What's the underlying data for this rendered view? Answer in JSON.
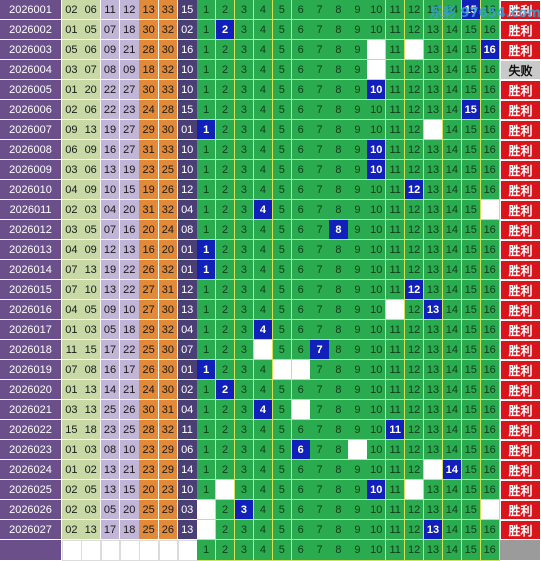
{
  "watermark": "乐彩 97654.com",
  "rows": [
    {
      "period": "2026001",
      "nums": [
        "02",
        "06",
        "11",
        "12",
        "13",
        "33",
        "15"
      ],
      "hit": "15",
      "result": "胜利"
    },
    {
      "period": "2026002",
      "nums": [
        "01",
        "05",
        "07",
        "18",
        "30",
        "32",
        "02"
      ],
      "hit": "2",
      "result": "胜利"
    },
    {
      "period": "2026003",
      "nums": [
        "05",
        "06",
        "09",
        "21",
        "28",
        "30",
        "16"
      ],
      "hit": "16",
      "blank": [
        "10",
        "12"
      ],
      "result": "胜利"
    },
    {
      "period": "2026004",
      "nums": [
        "03",
        "07",
        "08",
        "09",
        "18",
        "32",
        "10"
      ],
      "hit": "",
      "blank": [
        "10"
      ],
      "result": "失败"
    },
    {
      "period": "2026005",
      "nums": [
        "01",
        "20",
        "22",
        "27",
        "30",
        "33",
        "10"
      ],
      "hit": "10",
      "result": "胜利"
    },
    {
      "period": "2026006",
      "nums": [
        "02",
        "06",
        "22",
        "23",
        "24",
        "28",
        "15"
      ],
      "hit": "15",
      "result": "胜利"
    },
    {
      "period": "2026007",
      "nums": [
        "09",
        "13",
        "19",
        "27",
        "29",
        "30",
        "01"
      ],
      "hit": "1",
      "blank": [
        "13"
      ],
      "result": "胜利"
    },
    {
      "period": "2026008",
      "nums": [
        "06",
        "09",
        "16",
        "27",
        "31",
        "33",
        "10"
      ],
      "hit": "10",
      "result": "胜利"
    },
    {
      "period": "2026009",
      "nums": [
        "03",
        "06",
        "13",
        "19",
        "23",
        "25",
        "10"
      ],
      "hit": "10",
      "result": "胜利"
    },
    {
      "period": "2026010",
      "nums": [
        "04",
        "09",
        "10",
        "15",
        "19",
        "26",
        "12"
      ],
      "hit": "12",
      "result": "胜利"
    },
    {
      "period": "2026011",
      "nums": [
        "02",
        "03",
        "04",
        "20",
        "31",
        "32",
        "04"
      ],
      "hit": "4",
      "blank": [
        "16"
      ],
      "result": "胜利"
    },
    {
      "period": "2026012",
      "nums": [
        "03",
        "05",
        "07",
        "16",
        "20",
        "24",
        "08"
      ],
      "hit": "8",
      "result": "胜利"
    },
    {
      "period": "2026013",
      "nums": [
        "04",
        "09",
        "12",
        "13",
        "16",
        "20",
        "01"
      ],
      "hit": "1",
      "result": "胜利"
    },
    {
      "period": "2026014",
      "nums": [
        "07",
        "13",
        "19",
        "22",
        "26",
        "32",
        "01"
      ],
      "hit": "1",
      "result": "胜利"
    },
    {
      "period": "2026015",
      "nums": [
        "07",
        "10",
        "13",
        "22",
        "27",
        "31",
        "12"
      ],
      "hit": "12",
      "result": "胜利"
    },
    {
      "period": "2026016",
      "nums": [
        "04",
        "05",
        "09",
        "10",
        "27",
        "30",
        "13"
      ],
      "hit": "13",
      "blank": [
        "11"
      ],
      "result": "胜利"
    },
    {
      "period": "2026017",
      "nums": [
        "01",
        "03",
        "05",
        "18",
        "29",
        "32",
        "04"
      ],
      "hit": "4",
      "result": "胜利"
    },
    {
      "period": "2026018",
      "nums": [
        "11",
        "15",
        "17",
        "22",
        "25",
        "30",
        "07"
      ],
      "hit": "7",
      "blank": [
        "4"
      ],
      "result": "胜利"
    },
    {
      "period": "2026019",
      "nums": [
        "07",
        "08",
        "16",
        "17",
        "26",
        "30",
        "01"
      ],
      "hit": "1",
      "blank": [
        "5",
        "6"
      ],
      "result": "胜利"
    },
    {
      "period": "2026020",
      "nums": [
        "01",
        "13",
        "14",
        "21",
        "24",
        "30",
        "02"
      ],
      "hit": "2",
      "result": "胜利"
    },
    {
      "period": "2026021",
      "nums": [
        "03",
        "13",
        "25",
        "26",
        "30",
        "31",
        "04"
      ],
      "hit": "4",
      "blank": [
        "6"
      ],
      "result": "胜利"
    },
    {
      "period": "2026022",
      "nums": [
        "15",
        "18",
        "23",
        "25",
        "28",
        "32",
        "11"
      ],
      "hit": "11",
      "result": "胜利"
    },
    {
      "period": "2026023",
      "nums": [
        "01",
        "03",
        "08",
        "10",
        "23",
        "29",
        "06"
      ],
      "hit": "6",
      "blank": [
        "9"
      ],
      "result": "胜利"
    },
    {
      "period": "2026024",
      "nums": [
        "01",
        "02",
        "13",
        "21",
        "23",
        "29",
        "14"
      ],
      "hit": "14",
      "blank": [
        "13"
      ],
      "result": "胜利"
    },
    {
      "period": "2026025",
      "nums": [
        "02",
        "05",
        "13",
        "15",
        "20",
        "23",
        "10"
      ],
      "hit": "10",
      "blank": [
        "2",
        "12"
      ],
      "result": "胜利"
    },
    {
      "period": "2026026",
      "nums": [
        "02",
        "03",
        "05",
        "20",
        "25",
        "29",
        "03"
      ],
      "hit": "3",
      "blank": [
        "1",
        "16"
      ],
      "result": "胜利"
    },
    {
      "period": "2026027",
      "nums": [
        "02",
        "13",
        "17",
        "18",
        "25",
        "26",
        "13"
      ],
      "hit": "13",
      "blank": [
        "1"
      ],
      "result": "胜利"
    }
  ],
  "grid_numbers": [
    "1",
    "2",
    "3",
    "4",
    "5",
    "6",
    "7",
    "8",
    "9",
    "10",
    "11",
    "12",
    "13",
    "14",
    "15",
    "16"
  ]
}
